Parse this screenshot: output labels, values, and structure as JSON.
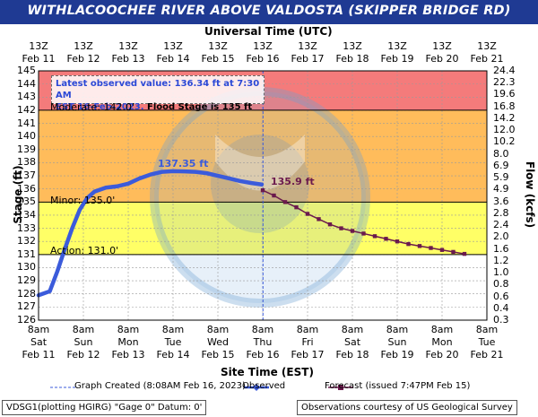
{
  "title": "WITHLACOOCHEE RIVER ABOVE VALDOSTA (SKIPPER BRIDGE RD)",
  "top_axis_title": "Universal Time (UTC)",
  "top_ticks": [
    "13Z",
    "13Z",
    "13Z",
    "13Z",
    "13Z",
    "13Z",
    "13Z",
    "13Z",
    "13Z",
    "13Z",
    "13Z"
  ],
  "top_dates": [
    "Feb 11",
    "Feb 12",
    "Feb 13",
    "Feb 14",
    "Feb 15",
    "Feb 16",
    "Feb 17",
    "Feb 18",
    "Feb 19",
    "Feb 20",
    "Feb 21"
  ],
  "bottom_times": [
    "8am",
    "8am",
    "8am",
    "8am",
    "8am",
    "8am",
    "8am",
    "8am",
    "8am",
    "8am",
    "8am"
  ],
  "bottom_days": [
    "Sat",
    "Sun",
    "Mon",
    "Tue",
    "Wed",
    "Thu",
    "Fri",
    "Sat",
    "Sun",
    "Mon",
    "Tue"
  ],
  "bottom_dates": [
    "Feb 11",
    "Feb 12",
    "Feb 13",
    "Feb 14",
    "Feb 15",
    "Feb 16",
    "Feb 17",
    "Feb 18",
    "Feb 19",
    "Feb 20",
    "Feb 21"
  ],
  "bottom_axis_title": "Site Time (EST)",
  "left_axis_title": "Stage (ft)",
  "right_axis_title": "Flow (kcfs)",
  "left_ticks": [
    "126",
    "127",
    "128",
    "129",
    "130",
    "131",
    "132",
    "133",
    "134",
    "135",
    "136",
    "137",
    "138",
    "139",
    "140",
    "141",
    "142",
    "143",
    "144",
    "145"
  ],
  "right_ticks": [
    "0.3",
    "0.4",
    "0.6",
    "0.8",
    "1.0",
    "1.2",
    "1.6",
    "2.0",
    "2.4",
    "2.8",
    "3.6",
    "4.9",
    "5.9",
    "6.9",
    "8.0",
    "10.2",
    "12.0",
    "14.2",
    "16.8",
    "19.6",
    "22.3",
    "24.4"
  ],
  "info_box": {
    "line1": "Latest observed value: 136.34 ft at 7:30 AM",
    "line2a": "EST 16-Feb-2023.",
    "line2b": " Flood Stage is 135 ft"
  },
  "flood_labels": {
    "moderate": "Moderate: 142.0'",
    "minor": "Minor: 135.0'",
    "action": "Action: 131.0'"
  },
  "peak_label": "137.35 ft",
  "forecast_label": "135.9 ft",
  "legend": {
    "created": "Graph Created (8:08AM Feb 16, 2023)",
    "observed": "Observed",
    "forecast": "Forecast (issued 7:47PM Feb 15)"
  },
  "footer": {
    "left": "VDSG1(plotting HGIRG) \"Gage 0\" Datum: 0'",
    "right": "Observations courtesy of US Geological Survey"
  },
  "colors": {
    "title_bg": "#1f3a93",
    "moderate_band": "#f47b7b",
    "minor_band": "#ffbc5b",
    "action_band": "#ffff66",
    "normal_band": "#ffffff",
    "observed": "#3b5bdb",
    "forecast": "#6b1a4d"
  },
  "chart_data": {
    "type": "line",
    "title": "WITHLACOOCHEE RIVER ABOVE VALDOSTA (SKIPPER BRIDGE RD)",
    "xlabel": "Site Time (EST)",
    "ylabel": "Stage (ft)",
    "y2label": "Flow (kcfs)",
    "ylim": [
      126,
      145
    ],
    "xlim": [
      "2023-02-11 08:00",
      "2023-02-21 08:00"
    ],
    "flood_stages": {
      "action": 131.0,
      "minor": 135.0,
      "moderate": 142.0
    },
    "series": [
      {
        "name": "Observed",
        "x": [
          "2023-02-11 08:00",
          "2023-02-11 14:00",
          "2023-02-11 18:00",
          "2023-02-11 22:00",
          "2023-02-12 02:00",
          "2023-02-12 06:00",
          "2023-02-12 10:00",
          "2023-02-12 14:00",
          "2023-02-12 20:00",
          "2023-02-13 02:00",
          "2023-02-13 08:00",
          "2023-02-13 14:00",
          "2023-02-13 20:00",
          "2023-02-14 02:00",
          "2023-02-14 08:00",
          "2023-02-14 14:00",
          "2023-02-14 20:00",
          "2023-02-15 02:00",
          "2023-02-15 08:00",
          "2023-02-15 14:00",
          "2023-02-15 20:00",
          "2023-02-16 02:00",
          "2023-02-16 07:30"
        ],
        "y": [
          127.9,
          128.2,
          129.7,
          131.4,
          133.0,
          134.4,
          135.3,
          135.8,
          136.1,
          136.2,
          136.4,
          136.8,
          137.1,
          137.3,
          137.35,
          137.34,
          137.3,
          137.2,
          137.0,
          136.8,
          136.6,
          136.45,
          136.34
        ]
      },
      {
        "name": "Forecast",
        "x": [
          "2023-02-16 08:00",
          "2023-02-16 14:00",
          "2023-02-16 20:00",
          "2023-02-17 02:00",
          "2023-02-17 08:00",
          "2023-02-17 14:00",
          "2023-02-17 20:00",
          "2023-02-18 02:00",
          "2023-02-18 08:00",
          "2023-02-18 14:00",
          "2023-02-18 20:00",
          "2023-02-19 02:00",
          "2023-02-19 08:00",
          "2023-02-19 14:00",
          "2023-02-19 20:00",
          "2023-02-20 02:00",
          "2023-02-20 08:00",
          "2023-02-20 14:00",
          "2023-02-20 20:00"
        ],
        "y": [
          135.9,
          135.5,
          135.0,
          134.6,
          134.1,
          133.7,
          133.3,
          133.0,
          132.8,
          132.6,
          132.4,
          132.2,
          132.0,
          131.8,
          131.65,
          131.5,
          131.35,
          131.2,
          131.05
        ]
      }
    ],
    "grid": true,
    "legend_position": "bottom"
  }
}
